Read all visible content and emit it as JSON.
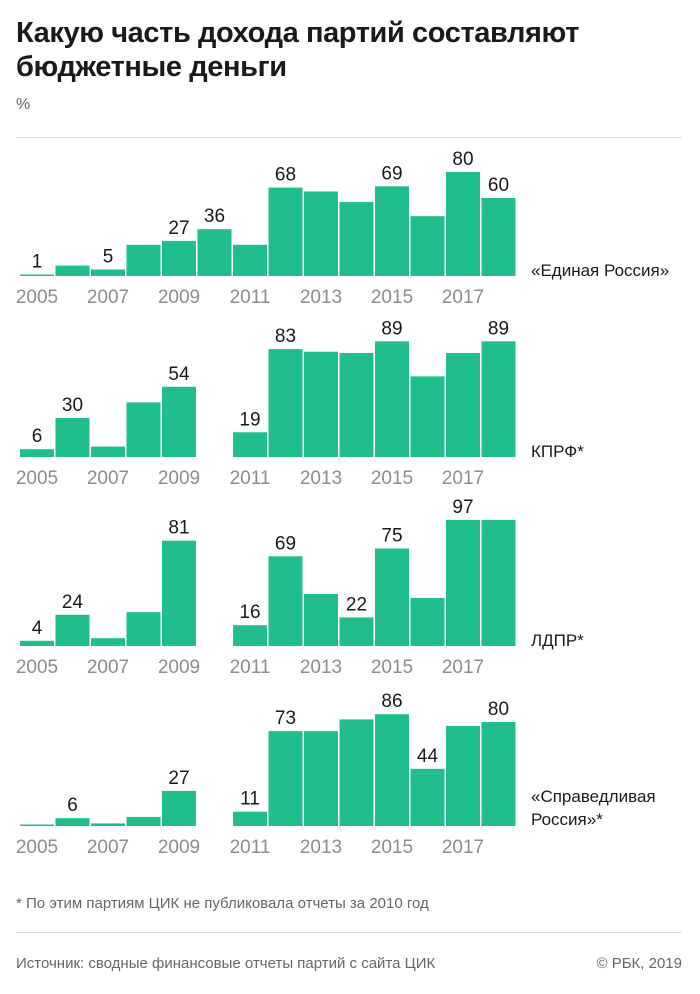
{
  "title": "Какую часть дохода партий составляют бюджетные деньги",
  "unit": "%",
  "footnote": "* По этим партиям ЦИК не публиковала отчеты за 2010 год",
  "source": "Источник: сводные финансовые отчеты партий с сайта ЦИК",
  "credit": "© РБК, 2019",
  "colors": {
    "bar": "#1fbe8c",
    "tick": "#8c8c8c",
    "text": "#1a1a1a"
  },
  "chart_data": [
    {
      "type": "bar",
      "name": "«Единая Россия»",
      "categories": [
        "2005",
        "2006",
        "2007",
        "2008",
        "2009",
        "2010",
        "2011",
        "2012",
        "2013",
        "2014",
        "2015",
        "2016",
        "2017",
        "2018"
      ],
      "values": [
        1,
        8,
        5,
        24,
        27,
        36,
        24,
        68,
        65,
        57,
        69,
        46,
        80,
        60
      ],
      "data_labels": {
        "2005": "1",
        "2007": "5",
        "2009": "27",
        "2010": "36",
        "2012": "68",
        "2015": "69",
        "2017": "80",
        "2018": "60"
      },
      "tick_labels": [
        "2005",
        "2007",
        "2009",
        "2011",
        "2013",
        "2015",
        "2017"
      ],
      "ylim": [
        0,
        100
      ]
    },
    {
      "type": "bar",
      "name": "КПРФ*",
      "categories": [
        "2005",
        "2006",
        "2007",
        "2008",
        "2009",
        "2010",
        "2011",
        "2012",
        "2013",
        "2014",
        "2015",
        "2016",
        "2017",
        "2018"
      ],
      "values": [
        6,
        30,
        8,
        42,
        54,
        null,
        19,
        83,
        81,
        80,
        89,
        62,
        80,
        89
      ],
      "data_labels": {
        "2005": "6",
        "2006": "30",
        "2009": "54",
        "2011": "19",
        "2012": "83",
        "2015": "89",
        "2018": "89"
      },
      "tick_labels": [
        "2005",
        "2007",
        "2009",
        "2011",
        "2013",
        "2015",
        "2017"
      ],
      "ylim": [
        0,
        100
      ]
    },
    {
      "type": "bar",
      "name": "ЛДПР*",
      "categories": [
        "2005",
        "2006",
        "2007",
        "2008",
        "2009",
        "2010",
        "2011",
        "2012",
        "2013",
        "2014",
        "2015",
        "2016",
        "2017",
        "2018"
      ],
      "values": [
        4,
        24,
        6,
        26,
        81,
        null,
        16,
        69,
        40,
        22,
        75,
        37,
        97,
        97
      ],
      "data_labels": {
        "2005": "4",
        "2006": "24",
        "2009": "81",
        "2011": "16",
        "2012": "69",
        "2014": "22",
        "2015": "75",
        "2017": "97"
      },
      "tick_labels": [
        "2005",
        "2007",
        "2009",
        "2011",
        "2013",
        "2015",
        "2017"
      ],
      "ylim": [
        0,
        100
      ]
    },
    {
      "type": "bar",
      "name": "«Справедливая Россия»*",
      "name_lines": [
        "«Справедливая",
        "Россия»*"
      ],
      "categories": [
        "2005",
        "2006",
        "2007",
        "2008",
        "2009",
        "2010",
        "2011",
        "2012",
        "2013",
        "2014",
        "2015",
        "2016",
        "2017",
        "2018"
      ],
      "values": [
        0,
        6,
        2,
        7,
        27,
        null,
        11,
        73,
        73,
        82,
        86,
        44,
        77,
        80
      ],
      "data_labels": {
        "2006": "6",
        "2009": "27",
        "2011": "11",
        "2012": "73",
        "2015": "86",
        "2016": "44",
        "2018": "80"
      },
      "tick_labels": [
        "2005",
        "2007",
        "2009",
        "2011",
        "2013",
        "2015",
        "2017"
      ],
      "ylim": [
        0,
        100
      ]
    }
  ]
}
